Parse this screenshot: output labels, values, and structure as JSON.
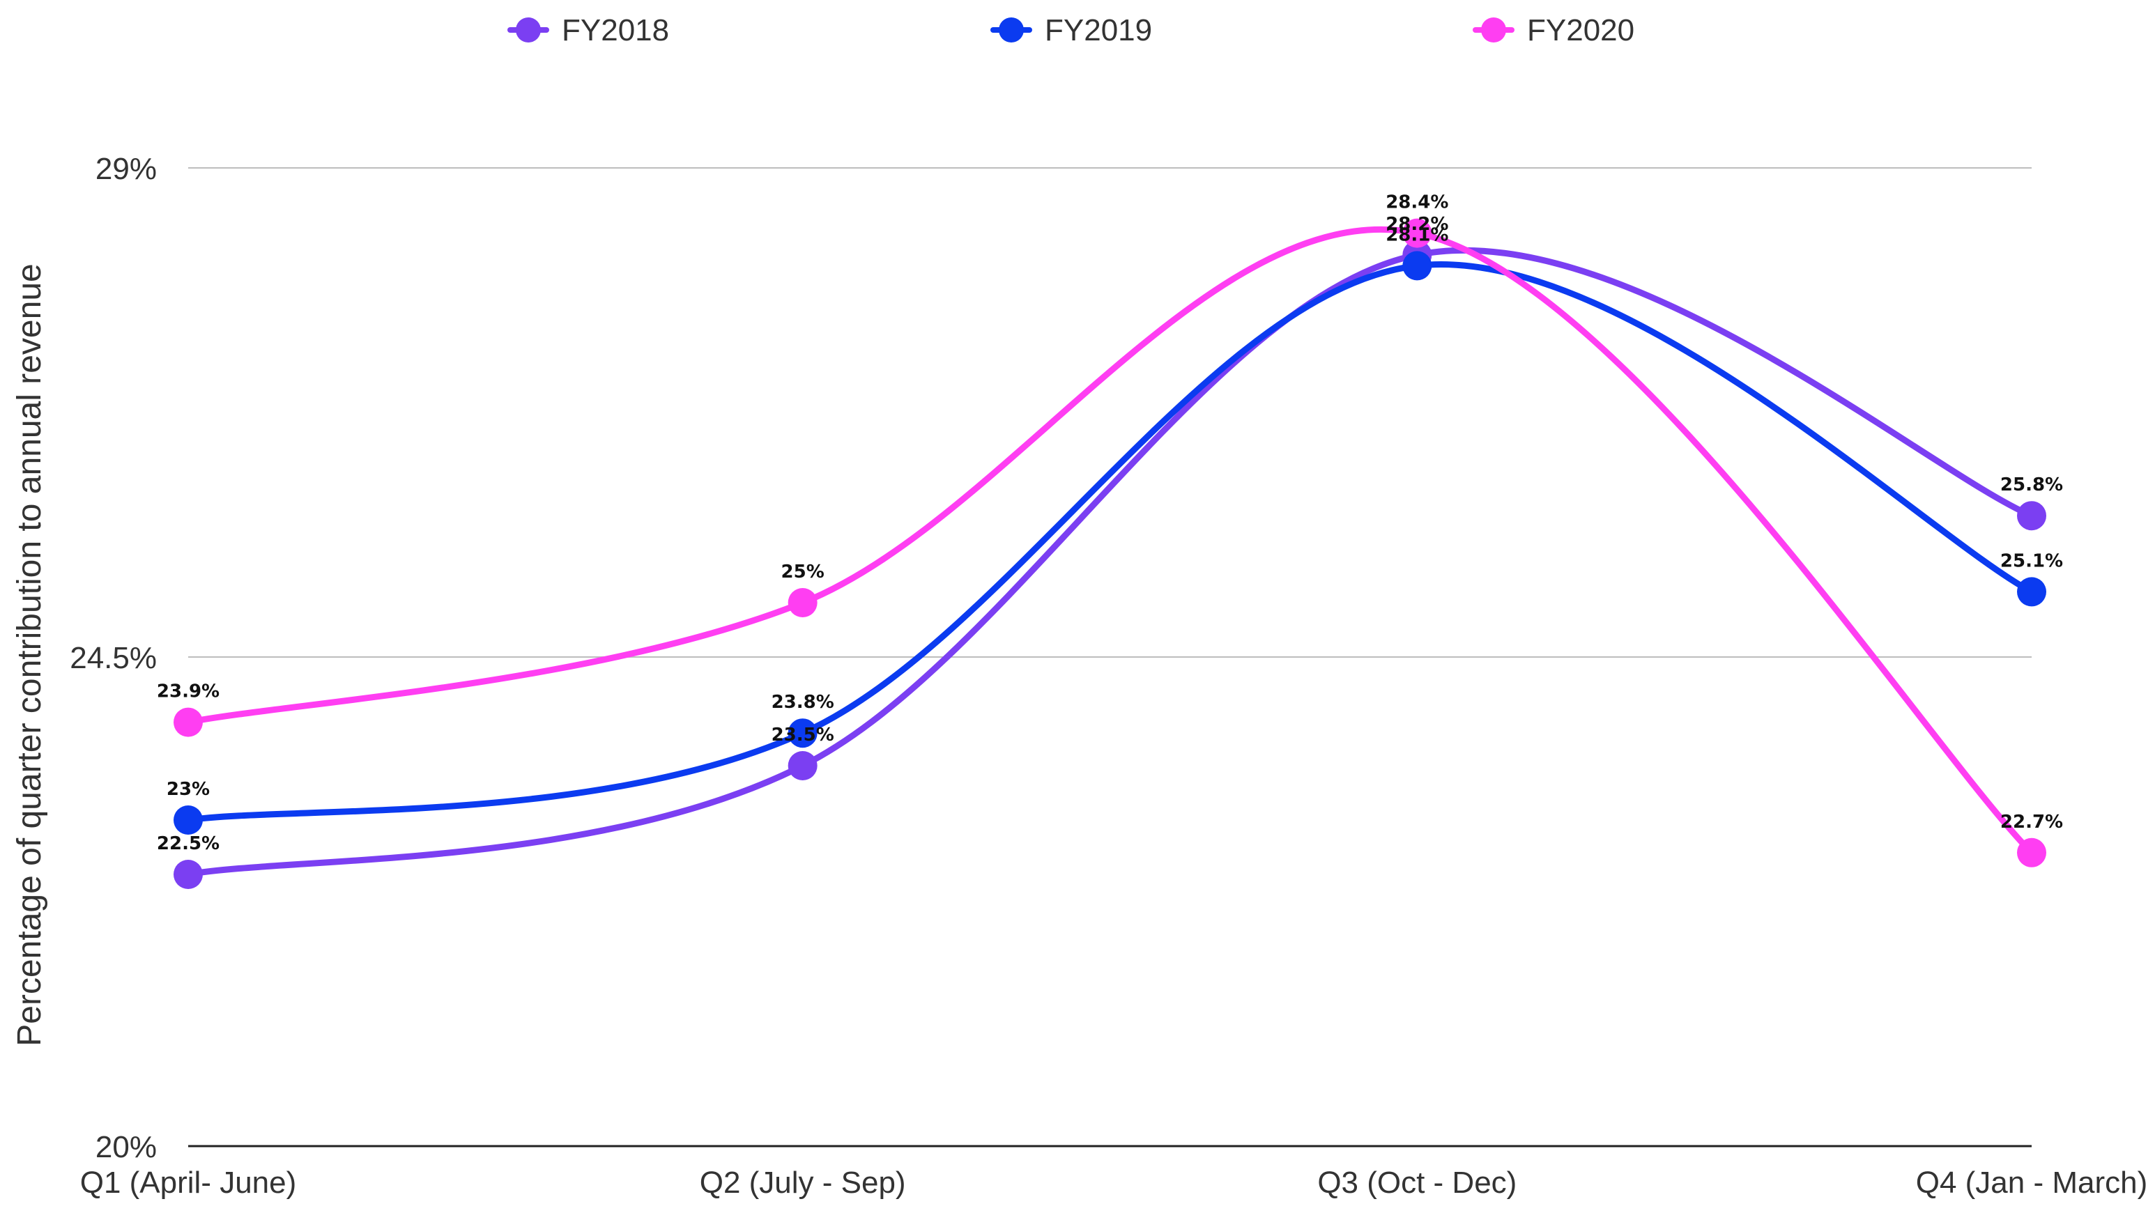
{
  "chart_data": {
    "type": "line",
    "title": "",
    "xlabel": "",
    "ylabel": "Percentage of quarter contribution to annual revenue",
    "categories": [
      "Q1 (April- June)",
      "Q2 (July - Sep)",
      "Q3 (Oct - Dec)",
      "Q4 (Jan - March)"
    ],
    "ylim": [
      20,
      29
    ],
    "yticks": [
      20,
      24.5,
      29
    ],
    "ytick_labels": [
      "20%",
      "24.5%",
      "29%"
    ],
    "grid": true,
    "legend_position": "top",
    "smooth": true,
    "series": [
      {
        "name": "FY2018",
        "color": "#7b3ff2",
        "values": [
          22.5,
          23.5,
          28.2,
          25.8
        ],
        "labels": [
          "22.5%",
          "23.5%",
          "28.2%",
          "25.8%"
        ]
      },
      {
        "name": "FY2019",
        "color": "#0b3bf0",
        "values": [
          23,
          23.8,
          28.1,
          25.1
        ],
        "labels": [
          "23%",
          "23.8%",
          "28.1%",
          "25.1%"
        ]
      },
      {
        "name": "FY2020",
        "color": "#ff3ef2",
        "values": [
          23.9,
          25,
          28.4,
          22.7
        ],
        "labels": [
          "23.9%",
          "25%",
          "28.4%",
          "22.7%"
        ]
      }
    ]
  }
}
